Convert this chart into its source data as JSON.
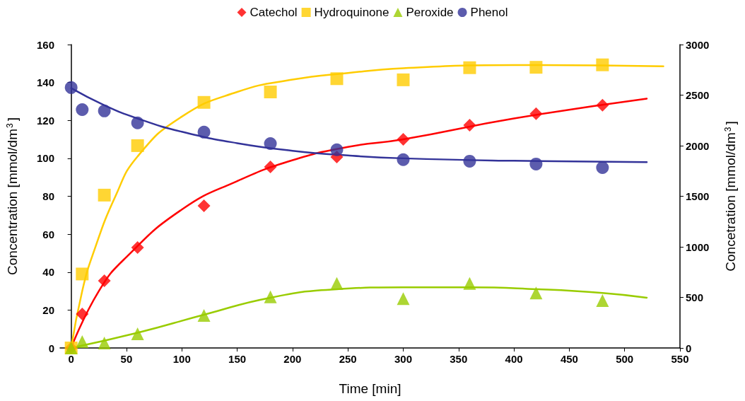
{
  "chart_data": {
    "type": "scatter",
    "xlabel": "Time [min]",
    "ylabel": "Concentration [mmol/dm$^{3}$]",
    "y2label": "Concetration [mmol/dm$^{3}$]",
    "xlim": [
      -10,
      550
    ],
    "xticks": [
      0,
      50,
      100,
      150,
      200,
      250,
      300,
      350,
      400,
      450,
      500,
      550
    ],
    "ylim": [
      0,
      160
    ],
    "yticks": [
      0,
      20,
      40,
      60,
      80,
      100,
      120,
      140,
      160
    ],
    "y2lim": [
      0,
      3000
    ],
    "y2ticks": [
      0,
      500,
      1000,
      1500,
      2000,
      2500,
      3000
    ],
    "grid": false,
    "legend": "top",
    "x": [
      0,
      10,
      30,
      60,
      120,
      180,
      240,
      300,
      360,
      420,
      480
    ],
    "series": [
      {
        "name": "Catechol",
        "color": "#ff0000",
        "marker": "diamond",
        "values": [
          0,
          17.9,
          35.4,
          53,
          75,
          95.5,
          100.7,
          110,
          117.5,
          123.5,
          128
        ]
      },
      {
        "name": "Hydroquinone",
        "color": "#ffcc00",
        "marker": "square",
        "values": [
          0,
          39,
          80.6,
          106.7,
          129.5,
          135,
          142,
          141.4,
          147.8,
          148,
          149.3
        ]
      },
      {
        "name": "Peroxide",
        "color": "#99cc00",
        "marker": "triangle",
        "values": [
          0,
          3.4,
          2.6,
          7.5,
          17.2,
          26.9,
          34,
          26,
          34,
          29,
          25
        ]
      },
      {
        "name": "Phenol",
        "color": "#333399",
        "marker": "circle",
        "values": [
          137.3,
          125.7,
          125,
          118.7,
          113.8,
          107.8,
          104.5,
          99.3,
          98.5,
          97,
          95.1
        ]
      },
      {
        "type": "line",
        "color": "#ff0000",
        "marker": "none",
        "x": [
          0,
          25,
          50,
          100,
          150,
          200,
          250,
          300,
          400,
          520
        ],
        "values": [
          0,
          30,
          48,
          73,
          88,
          99,
          106,
          110,
          121,
          131.5
        ]
      },
      {
        "type": "line",
        "color": "#ffcc00",
        "marker": "none",
        "x": [
          0,
          10,
          20,
          40,
          60,
          100,
          150,
          200,
          250,
          300,
          400,
          535
        ],
        "values": [
          0,
          30,
          50,
          80,
          101,
          122,
          135,
          141.5,
          145,
          147.5,
          149.2,
          148.5
        ]
      },
      {
        "type": "line",
        "color": "#99cc00",
        "marker": "none",
        "x": [
          0,
          60,
          120,
          180,
          240,
          300,
          360,
          420,
          480,
          520
        ],
        "values": [
          0,
          8,
          17.5,
          26.5,
          31,
          32,
          32,
          31,
          29,
          26.5
        ]
      },
      {
        "type": "line",
        "color": "#333399",
        "marker": "none",
        "x": [
          0,
          30,
          60,
          100,
          150,
          200,
          250,
          300,
          400,
          520
        ],
        "values": [
          137,
          128,
          121,
          114,
          108,
          104,
          101.5,
          100,
          98.7,
          98
        ]
      }
    ]
  }
}
